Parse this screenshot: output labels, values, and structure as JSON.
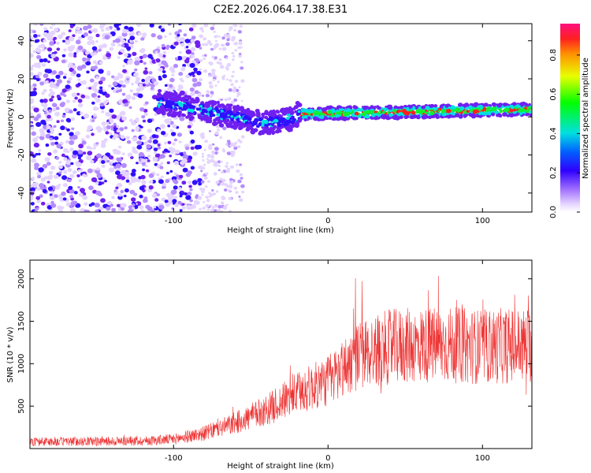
{
  "title": "C2E2.2026.064.17.38.E31",
  "chart_data": [
    {
      "type": "heatmap",
      "name": "spectrogram",
      "xlabel": "Height of straight line (km)",
      "ylabel": "Frequency (Hz)",
      "xlim": [
        -193,
        132
      ],
      "ylim": [
        -50,
        49
      ],
      "xticks": [
        -100,
        0,
        100
      ],
      "xtick_labels": [
        "-100",
        "0",
        "100"
      ],
      "yticks": [
        -40,
        -20,
        0,
        20,
        40
      ],
      "ytick_labels": [
        "-40",
        "-20",
        "0",
        "20",
        "40"
      ],
      "colorbar": {
        "label": "Normalized spectral amplitude",
        "range": [
          0,
          0.96
        ],
        "ticks": [
          0.0,
          0.2,
          0.4,
          0.6,
          0.8
        ],
        "tick_labels": [
          "0.0",
          "0.2",
          "0.4",
          "0.6",
          "0.8"
        ]
      },
      "features": {
        "scatter_region_x": [
          -193,
          -83
        ],
        "faint_region_x": [
          -83,
          -55
        ],
        "line_start_x": -110,
        "line_center_freq_start": 8,
        "line_center_freq_mid": 0,
        "line_center_freq_end": 4,
        "bright_start_x": -18
      }
    },
    {
      "type": "line",
      "name": "snr",
      "color": "#ee3333",
      "xlabel": "Height of straight line (km)",
      "ylabel": "SNR (10 * v/v)",
      "xlim": [
        -193,
        132
      ],
      "ylim": [
        0,
        2220
      ],
      "xticks": [
        -100,
        0,
        100
      ],
      "xtick_labels": [
        "-100",
        "0",
        "100"
      ],
      "yticks": [
        500,
        1000,
        1500,
        2000
      ],
      "ytick_labels": [
        "500",
        "1000",
        "1500",
        "2000"
      ],
      "trend_x": [
        -193,
        -120,
        -100,
        -80,
        -60,
        -40,
        -20,
        0,
        10,
        20,
        40,
        60,
        80,
        100,
        132
      ],
      "trend_y": [
        80,
        90,
        110,
        180,
        300,
        450,
        650,
        800,
        950,
        1100,
        1200,
        1220,
        1220,
        1200,
        1220
      ]
    }
  ]
}
